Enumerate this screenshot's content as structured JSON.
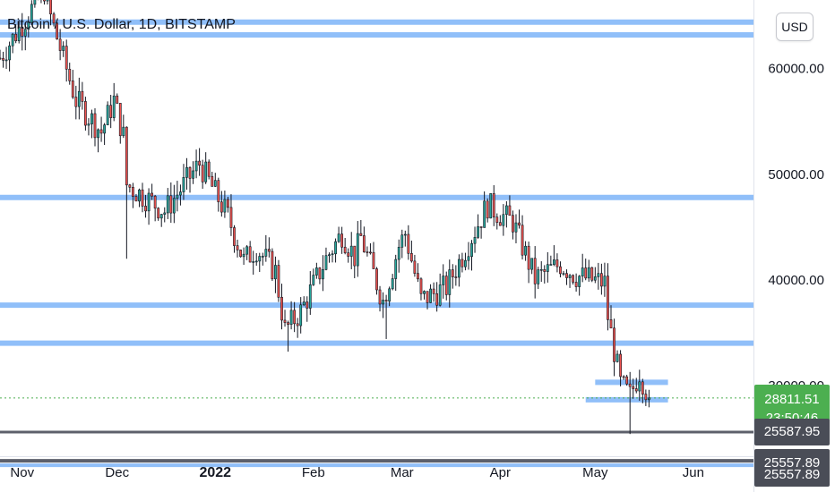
{
  "title": "Bitcoin / U.S. Dollar, 1D, BITSTAMP",
  "currency_button": "USD",
  "colors": {
    "up": "#26a69a",
    "down": "#ef5350",
    "level_line": "#90bff9",
    "support_line": "#5d606b",
    "current_price_bg": "#4caf50",
    "marker_bg": "#4a4d57"
  },
  "chart_data": {
    "type": "candlestick",
    "symbol": "Bitcoin / U.S. Dollar",
    "interval": "1D",
    "exchange": "BITSTAMP",
    "y_ticks": [
      "60000.00",
      "50000.00",
      "40000.00",
      "30000.00"
    ],
    "x_ticks": [
      {
        "label": "Nov",
        "date": "2021-11-01"
      },
      {
        "label": "Dec",
        "date": "2021-12-01"
      },
      {
        "label": "2022",
        "date": "2022-01-01",
        "bold": true
      },
      {
        "label": "Feb",
        "date": "2022-02-01"
      },
      {
        "label": "Mar",
        "date": "2022-03-01"
      },
      {
        "label": "Apr",
        "date": "2022-04-01"
      },
      {
        "label": "May",
        "date": "2022-05-01"
      },
      {
        "label": "Jun",
        "date": "2022-06-01"
      }
    ],
    "date_range": [
      "2021-10-25",
      "2022-06-20"
    ],
    "price_range": [
      23300,
      66500
    ],
    "horizontal_levels": [
      {
        "price": 64400,
        "style": "band"
      },
      {
        "price": 63200,
        "style": "band"
      },
      {
        "price": 47800,
        "style": "band"
      },
      {
        "price": 37600,
        "style": "band"
      },
      {
        "price": 34000,
        "style": "band"
      },
      {
        "price": 30300,
        "style": "short",
        "start": "2022-05-01",
        "end": "2022-05-24"
      },
      {
        "price": 28650,
        "style": "short",
        "start": "2022-04-28",
        "end": "2022-05-24"
      },
      {
        "price": 25588,
        "style": "support"
      },
      {
        "price": 22700,
        "style": "support_band"
      }
    ],
    "current_price": {
      "value": "28811.51",
      "countdown": "23:50:46",
      "price": 28811.51
    },
    "axis_markers": [
      {
        "value": "25587.95",
        "price": 25588
      },
      {
        "value": "25557.89",
        "price": 22700
      },
      {
        "value": "25557.89",
        "price": 21600,
        "partial": true
      }
    ],
    "segments": [
      [
        "2021-10-25",
        61000
      ],
      [
        "2021-11-08",
        67500
      ],
      [
        "2021-11-10",
        64900
      ],
      [
        "2021-11-18",
        57000
      ],
      [
        "2021-11-26",
        54000
      ],
      [
        "2021-11-30",
        57000
      ],
      [
        "2021-12-03",
        53600
      ],
      [
        "2021-12-04",
        49000
      ],
      [
        "2021-12-10",
        47800
      ],
      [
        "2021-12-16",
        46500
      ],
      [
        "2021-12-27",
        51000
      ],
      [
        "2022-01-05",
        46000
      ],
      [
        "2022-01-10",
        41800
      ],
      [
        "2022-01-14",
        43000
      ],
      [
        "2022-01-20",
        40800
      ],
      [
        "2022-01-23",
        35200
      ],
      [
        "2022-01-28",
        37000
      ],
      [
        "2022-02-05",
        42000
      ],
      [
        "2022-02-10",
        44400
      ],
      [
        "2022-02-14",
        42200
      ],
      [
        "2022-02-16",
        44000
      ],
      [
        "2022-02-23",
        38000
      ],
      [
        "2022-02-28",
        43200
      ],
      [
        "2022-03-02",
        44400
      ],
      [
        "2022-03-07",
        38100
      ],
      [
        "2022-03-15",
        39300
      ],
      [
        "2022-03-28",
        47100
      ],
      [
        "2022-04-01",
        46200
      ],
      [
        "2022-04-05",
        45500
      ],
      [
        "2022-04-12",
        40100
      ],
      [
        "2022-04-20",
        41500
      ],
      [
        "2022-04-25",
        40400
      ],
      [
        "2022-05-04",
        39700
      ],
      [
        "2022-05-05",
        36500
      ],
      [
        "2022-05-09",
        30100
      ],
      [
        "2022-05-12",
        29000
      ],
      [
        "2022-05-15",
        31300
      ],
      [
        "2022-05-18",
        28811.51
      ]
    ],
    "wicks": [
      {
        "date": "2021-12-04",
        "low": 42000
      },
      {
        "date": "2022-01-24",
        "low": 33200
      },
      {
        "date": "2022-02-24",
        "low": 34400
      },
      {
        "date": "2022-05-12",
        "low": 25400
      }
    ]
  }
}
